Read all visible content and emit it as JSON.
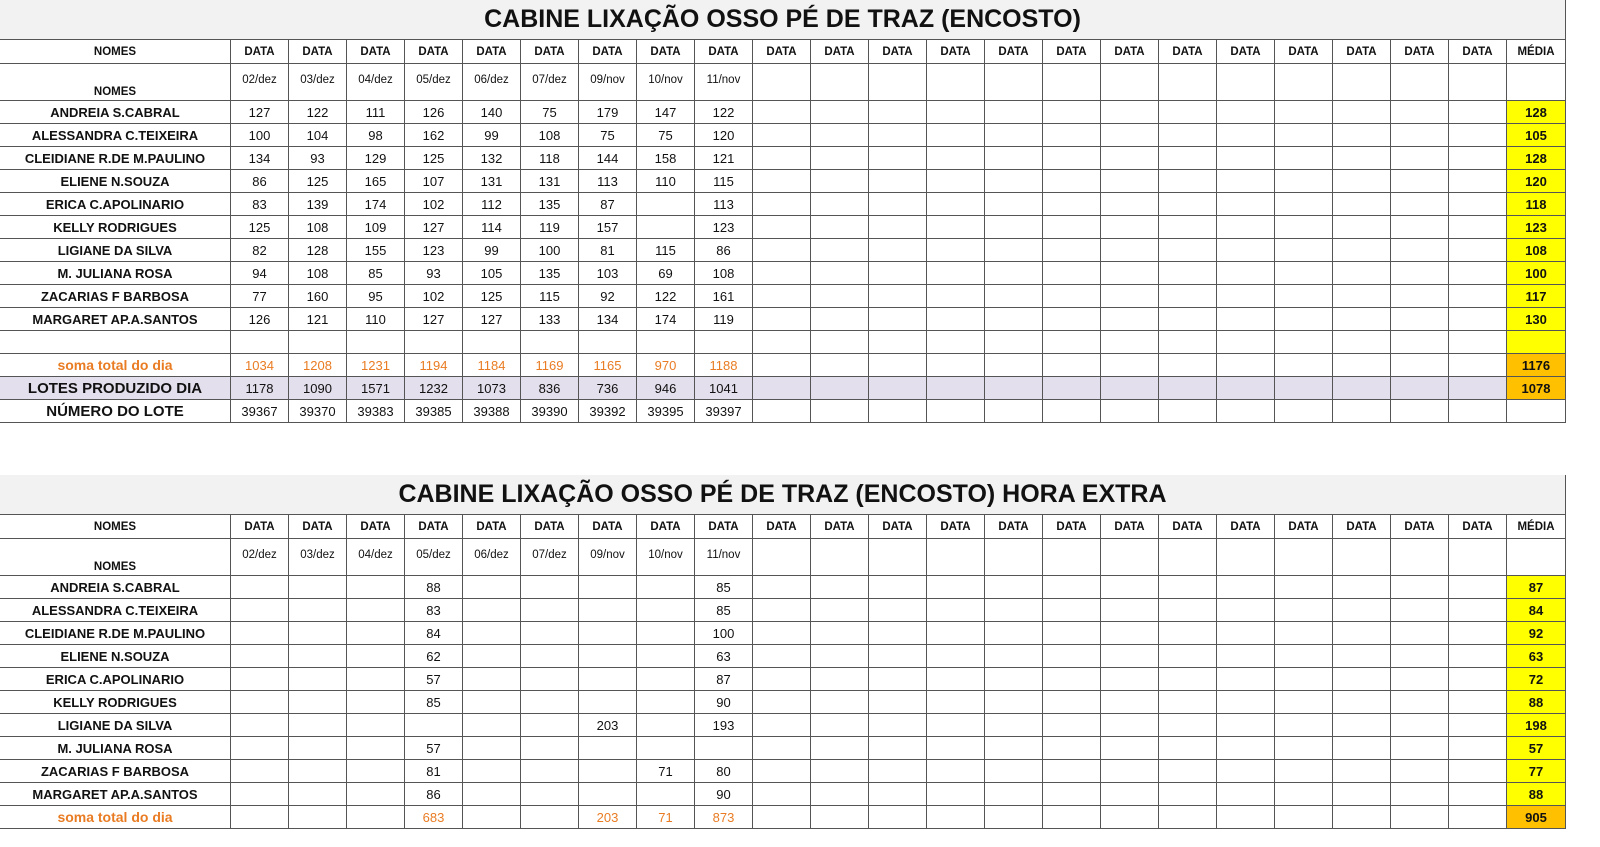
{
  "tables": [
    {
      "title": "CABINE LIXAÇÃO OSSO PÉ DE TRAZ (ENCOSTO)",
      "header": [
        "NOMES",
        "DATA",
        "DATA",
        "DATA",
        "DATA",
        "DATA",
        "DATA",
        "DATA",
        "DATA",
        "DATA",
        "DATA",
        "DATA",
        "DATA",
        "DATA",
        "DATA",
        "DATA",
        "DATA",
        "DATA",
        "DATA",
        "DATA",
        "DATA",
        "DATA",
        "DATA",
        "MÉDIA"
      ],
      "name_label": "NOMES",
      "dates": [
        "02/dez",
        "03/dez",
        "04/dez",
        "05/dez",
        "06/dez",
        "07/dez",
        "09/nov",
        "10/nov",
        "11/nov"
      ],
      "rows": [
        {
          "name": "ANDREIA S.CABRAL",
          "values": [
            127,
            122,
            111,
            126,
            140,
            75,
            179,
            147,
            122
          ],
          "media": 128
        },
        {
          "name": "ALESSANDRA C.TEIXEIRA",
          "values": [
            100,
            104,
            98,
            162,
            99,
            108,
            75,
            75,
            120
          ],
          "media": 105
        },
        {
          "name": "CLEIDIANE R.DE M.PAULINO",
          "values": [
            134,
            93,
            129,
            125,
            132,
            118,
            144,
            158,
            121
          ],
          "media": 128
        },
        {
          "name": "ELIENE N.SOUZA",
          "values": [
            86,
            125,
            165,
            107,
            131,
            131,
            113,
            110,
            115
          ],
          "media": 120
        },
        {
          "name": "ERICA C.APOLINARIO",
          "values": [
            83,
            139,
            174,
            102,
            112,
            135,
            87,
            null,
            113
          ],
          "media": 118
        },
        {
          "name": "KELLY RODRIGUES",
          "values": [
            125,
            108,
            109,
            127,
            114,
            119,
            157,
            null,
            123
          ],
          "media": 123
        },
        {
          "name": "LIGIANE DA SILVA",
          "values": [
            82,
            128,
            155,
            123,
            99,
            100,
            81,
            115,
            86
          ],
          "media": 108
        },
        {
          "name": "M. JULIANA ROSA",
          "values": [
            94,
            108,
            85,
            93,
            105,
            135,
            103,
            69,
            108
          ],
          "media": 100
        },
        {
          "name": "ZACARIAS F BARBOSA",
          "values": [
            77,
            160,
            95,
            102,
            125,
            115,
            92,
            122,
            161
          ],
          "media": 117
        },
        {
          "name": "MARGARET AP.A.SANTOS",
          "values": [
            126,
            121,
            110,
            127,
            127,
            133,
            134,
            174,
            119
          ],
          "media": 130
        }
      ],
      "total": {
        "label": "soma total  do dia",
        "values": [
          1034,
          1208,
          1231,
          1194,
          1184,
          1169,
          1165,
          970,
          1188
        ],
        "media": 1176
      },
      "lotes": {
        "label": "LOTES PRODUZIDO DIA",
        "values": [
          1178,
          1090,
          1571,
          1232,
          1073,
          836,
          736,
          946,
          1041
        ],
        "media": 1078
      },
      "numero": {
        "label": "NÚMERO DO LOTE",
        "values": [
          39367,
          39370,
          39383,
          39385,
          39388,
          39390,
          39392,
          39395,
          39397
        ]
      }
    },
    {
      "title": "CABINE LIXAÇÃO OSSO PÉ DE TRAZ (ENCOSTO) HORA EXTRA",
      "header": [
        "NOMES",
        "DATA",
        "DATA",
        "DATA",
        "DATA",
        "DATA",
        "DATA",
        "DATA",
        "DATA",
        "DATA",
        "DATA",
        "DATA",
        "DATA",
        "DATA",
        "DATA",
        "DATA",
        "DATA",
        "DATA",
        "DATA",
        "DATA",
        "DATA",
        "DATA",
        "DATA",
        "MÉDIA"
      ],
      "name_label": "NOMES",
      "dates": [
        "02/dez",
        "03/dez",
        "04/dez",
        "05/dez",
        "06/dez",
        "07/dez",
        "09/nov",
        "10/nov",
        "11/nov"
      ],
      "rows": [
        {
          "name": "ANDREIA S.CABRAL",
          "values": [
            null,
            null,
            null,
            88,
            null,
            null,
            null,
            null,
            85
          ],
          "media": 87
        },
        {
          "name": "ALESSANDRA C.TEIXEIRA",
          "values": [
            null,
            null,
            null,
            83,
            null,
            null,
            null,
            null,
            85
          ],
          "media": 84
        },
        {
          "name": "CLEIDIANE R.DE M.PAULINO",
          "values": [
            null,
            null,
            null,
            84,
            null,
            null,
            null,
            null,
            100
          ],
          "media": 92
        },
        {
          "name": "ELIENE N.SOUZA",
          "values": [
            null,
            null,
            null,
            62,
            null,
            null,
            null,
            null,
            63
          ],
          "media": 63
        },
        {
          "name": "ERICA C.APOLINARIO",
          "values": [
            null,
            null,
            null,
            57,
            null,
            null,
            null,
            null,
            87
          ],
          "media": 72
        },
        {
          "name": "KELLY RODRIGUES",
          "values": [
            null,
            null,
            null,
            85,
            null,
            null,
            null,
            null,
            90
          ],
          "media": 88
        },
        {
          "name": "LIGIANE DA SILVA",
          "values": [
            null,
            null,
            null,
            null,
            null,
            null,
            203,
            null,
            193
          ],
          "media": 198
        },
        {
          "name": "M. JULIANA ROSA",
          "values": [
            null,
            null,
            null,
            57,
            null,
            null,
            null,
            null,
            null
          ],
          "media": 57
        },
        {
          "name": "ZACARIAS F BARBOSA",
          "values": [
            null,
            null,
            null,
            81,
            null,
            null,
            null,
            71,
            80
          ],
          "media": 77
        },
        {
          "name": "MARGARET AP.A.SANTOS",
          "values": [
            null,
            null,
            null,
            86,
            null,
            null,
            null,
            null,
            90
          ],
          "media": 88
        }
      ],
      "total": {
        "label": "soma total  do dia",
        "values": [
          null,
          null,
          null,
          683,
          null,
          null,
          203,
          71,
          873
        ],
        "media": 905
      }
    }
  ]
}
